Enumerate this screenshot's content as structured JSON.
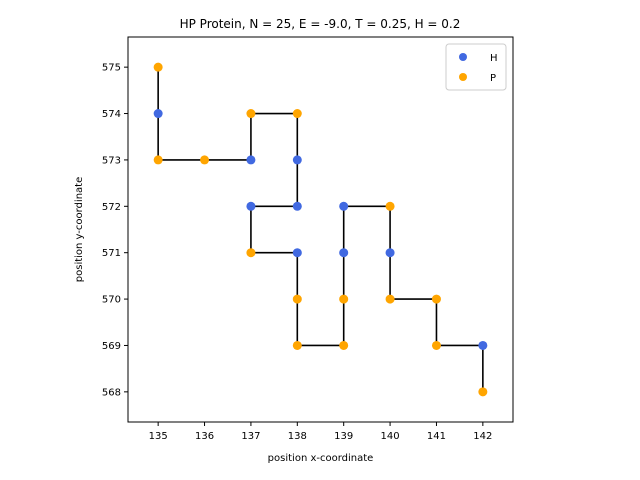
{
  "chart_data": {
    "type": "scatter",
    "title": "HP Protein, N = 25, E = -9.0, T = 0.25, H = 0.2",
    "xlabel": "position x-coordinate",
    "ylabel": "position y-coordinate",
    "xlim": [
      134.35,
      142.65
    ],
    "ylim": [
      567.35,
      575.65
    ],
    "xticks": [
      "135",
      "136",
      "137",
      "138",
      "139",
      "140",
      "141",
      "142"
    ],
    "yticks": [
      "568",
      "569",
      "570",
      "571",
      "572",
      "573",
      "574",
      "575"
    ],
    "grid": false,
    "legend": {
      "placement": "top-right",
      "entries": [
        {
          "label": "H",
          "color": "#4169e1"
        },
        {
          "label": "P",
          "color": "#ffa500"
        }
      ]
    },
    "chain_color": "#000000",
    "points": [
      {
        "x": 135,
        "y": 575,
        "type": "P"
      },
      {
        "x": 135,
        "y": 574,
        "type": "H"
      },
      {
        "x": 135,
        "y": 573,
        "type": "P"
      },
      {
        "x": 136,
        "y": 573,
        "type": "P"
      },
      {
        "x": 137,
        "y": 573,
        "type": "H"
      },
      {
        "x": 137,
        "y": 574,
        "type": "P"
      },
      {
        "x": 138,
        "y": 574,
        "type": "P"
      },
      {
        "x": 138,
        "y": 573,
        "type": "H"
      },
      {
        "x": 138,
        "y": 572,
        "type": "H"
      },
      {
        "x": 137,
        "y": 572,
        "type": "H"
      },
      {
        "x": 137,
        "y": 571,
        "type": "P"
      },
      {
        "x": 138,
        "y": 571,
        "type": "H"
      },
      {
        "x": 138,
        "y": 570,
        "type": "P"
      },
      {
        "x": 138,
        "y": 569,
        "type": "P"
      },
      {
        "x": 139,
        "y": 569,
        "type": "P"
      },
      {
        "x": 139,
        "y": 570,
        "type": "P"
      },
      {
        "x": 139,
        "y": 571,
        "type": "H"
      },
      {
        "x": 139,
        "y": 572,
        "type": "H"
      },
      {
        "x": 140,
        "y": 572,
        "type": "P"
      },
      {
        "x": 140,
        "y": 571,
        "type": "H"
      },
      {
        "x": 140,
        "y": 570,
        "type": "P"
      },
      {
        "x": 141,
        "y": 570,
        "type": "P"
      },
      {
        "x": 141,
        "y": 569,
        "type": "P"
      },
      {
        "x": 142,
        "y": 569,
        "type": "H"
      },
      {
        "x": 142,
        "y": 568,
        "type": "P"
      }
    ]
  }
}
